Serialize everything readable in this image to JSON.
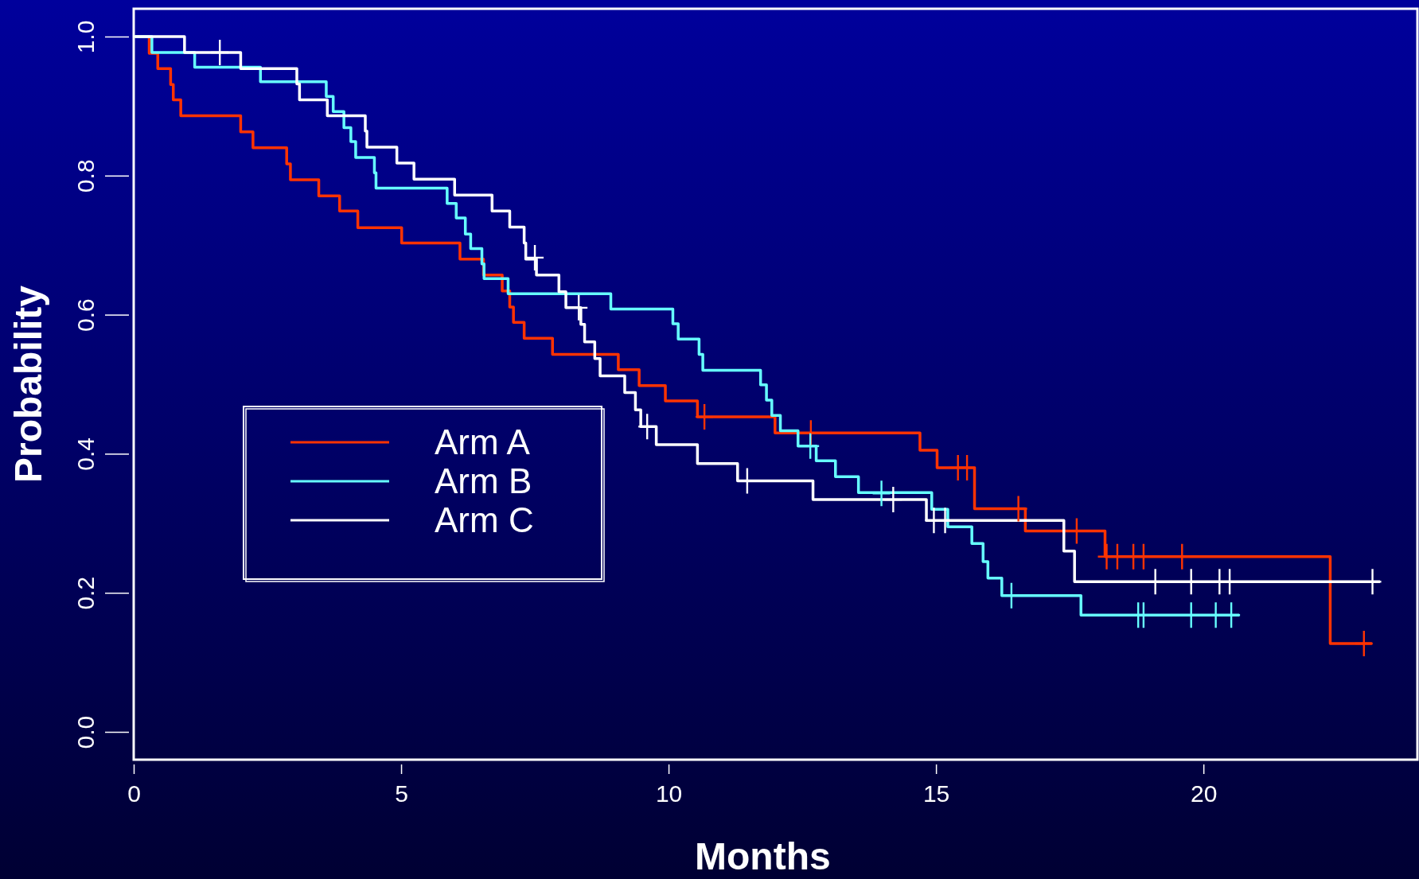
{
  "chart_data": {
    "type": "step",
    "xlabel": "Months",
    "ylabel": "Probability",
    "xlim": [
      0,
      24
    ],
    "ylim": [
      -0.04,
      1.04
    ],
    "xticks": [
      0,
      5,
      10,
      15,
      20
    ],
    "yticks": [
      {
        "value": 0,
        "label": "0.0"
      },
      0.2,
      0.4,
      0.6,
      0.8,
      {
        "value": 1,
        "label": "1.0"
      }
    ],
    "legend": "left",
    "grid": false,
    "series": [
      {
        "name": "Arm A",
        "color": "#ff3300",
        "x": [
          0,
          0.29,
          0.45,
          0.69,
          0.74,
          0.88,
          2.0,
          2.23,
          2.86,
          2.93,
          3.46,
          3.85,
          4.19,
          5.01,
          6.1,
          6.54,
          6.89,
          7.03,
          7.1,
          7.3,
          7.83,
          9.06,
          9.45,
          9.94,
          10.54,
          11.99,
          14.7,
          15.02,
          15.72,
          16.67,
          18.16,
          22.37,
          23.15
        ],
        "values": [
          1,
          0.976,
          0.954,
          0.931,
          0.909,
          0.886,
          0.863,
          0.84,
          0.817,
          0.794,
          0.771,
          0.749,
          0.725,
          0.703,
          0.68,
          0.657,
          0.634,
          0.611,
          0.589,
          0.566,
          0.543,
          0.521,
          0.498,
          0.476,
          0.453,
          0.43,
          0.405,
          0.38,
          0.321,
          0.289,
          0.252,
          0.127,
          0.127
        ]
      },
      {
        "name": "Arm B",
        "color": "#66ffff",
        "x": [
          0,
          0.34,
          1.14,
          2.37,
          3.6,
          3.73,
          3.93,
          4.06,
          4.15,
          4.5,
          4.53,
          5.86,
          6.03,
          6.2,
          6.3,
          6.51,
          6.55,
          7.0,
          8.92,
          10.08,
          10.18,
          10.57,
          10.64,
          11.72,
          11.83,
          11.93,
          12.09,
          12.42,
          12.76,
          13.12,
          13.55,
          14.92,
          15.22,
          15.67,
          15.88,
          15.97,
          16.23,
          17.71,
          20.67
        ],
        "values": [
          1,
          0.977,
          0.956,
          0.935,
          0.914,
          0.892,
          0.869,
          0.849,
          0.826,
          0.804,
          0.782,
          0.76,
          0.739,
          0.716,
          0.695,
          0.673,
          0.652,
          0.63,
          0.608,
          0.587,
          0.565,
          0.543,
          0.52,
          0.499,
          0.477,
          0.455,
          0.433,
          0.411,
          0.39,
          0.367,
          0.344,
          0.32,
          0.295,
          0.271,
          0.245,
          0.221,
          0.196,
          0.168,
          0.168
        ]
      },
      {
        "name": "Arm C",
        "color": "#ffffff",
        "x": [
          0,
          0.95,
          2.0,
          3.05,
          3.1,
          3.62,
          4.33,
          4.36,
          4.92,
          5.24,
          6.0,
          6.7,
          7.03,
          7.3,
          7.33,
          7.53,
          7.95,
          8.08,
          8.36,
          8.43,
          8.62,
          8.72,
          9.18,
          9.38,
          9.48,
          9.77,
          10.54,
          11.29,
          12.7,
          14.82,
          17.39,
          17.59,
          23.3
        ],
        "values": [
          1,
          0.977,
          0.954,
          0.932,
          0.909,
          0.886,
          0.864,
          0.841,
          0.818,
          0.795,
          0.772,
          0.749,
          0.726,
          0.703,
          0.68,
          0.657,
          0.633,
          0.61,
          0.586,
          0.561,
          0.537,
          0.512,
          0.488,
          0.463,
          0.439,
          0.413,
          0.386,
          0.361,
          0.334,
          0.304,
          0.26,
          0.216,
          0.216
        ]
      },
      {
        "type": "scatter",
        "marker": "cross",
        "color": "#ff3300",
        "x": [
          10.67,
          12.66,
          15.41,
          15.58,
          16.54,
          17.63,
          18.19,
          18.39,
          18.69,
          18.88,
          19.6,
          23.0
        ],
        "values": [
          0.453,
          0.43,
          0.38,
          0.38,
          0.321,
          0.289,
          0.252,
          0.252,
          0.252,
          0.252,
          0.252,
          0.127
        ]
      },
      {
        "type": "scatter",
        "marker": "cross",
        "color": "#66ffff",
        "x": [
          12.65,
          13.98,
          16.41,
          18.78,
          18.88,
          19.77,
          20.23,
          20.52
        ],
        "values": [
          0.411,
          0.343,
          0.196,
          0.168,
          0.168,
          0.168,
          0.168,
          0.168
        ]
      },
      {
        "type": "scatter",
        "marker": "cross",
        "color": "#ffffff",
        "x": [
          1.61,
          7.5,
          8.32,
          9.6,
          11.47,
          14.2,
          14.96,
          15.17,
          19.1,
          19.77,
          20.3,
          20.49,
          23.16
        ],
        "values": [
          0.977,
          0.682,
          0.61,
          0.439,
          0.361,
          0.334,
          0.304,
          0.304,
          0.216,
          0.216,
          0.216,
          0.216,
          0.216
        ]
      }
    ]
  }
}
